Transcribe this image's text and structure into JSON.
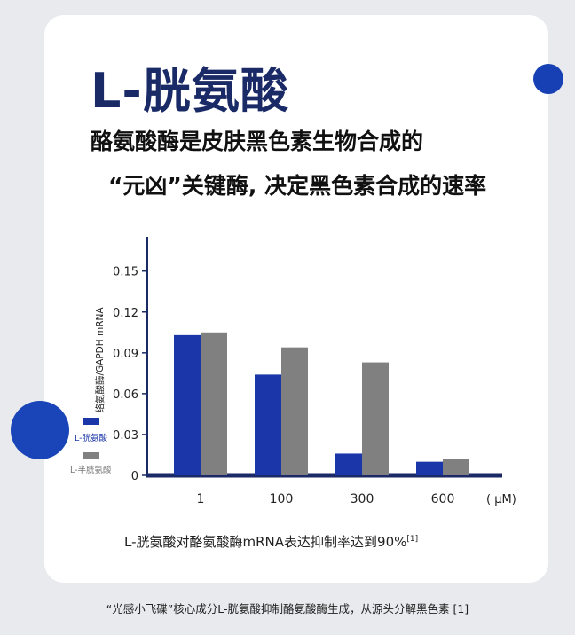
{
  "title": "L-胱氨酸",
  "subtitle_line1": "酪氨酸酶是皮肤黑色素生物合成的",
  "subtitle_line2": "“元凶”关键酶, 决定黑色素合成的速率",
  "caption": "L-胱氨酸对酪氨酸酶mRNA表达抑制率达到90%",
  "caption_ref": "[1]",
  "footer": "“光感小飞碟”核心成分L-胱氨酸抑制酪氨酸酶生成，从源头分解黑色素 [1]",
  "colors": {
    "accent": "#1640b3",
    "series_1": "#1a36a8",
    "series_2": "#808080",
    "axis": "#1b2a66"
  },
  "chart_data": {
    "type": "bar",
    "categories": [
      "1",
      "100",
      "300",
      "600"
    ],
    "x_unit": "( μM)",
    "ylabel": "络氨酸酶/GAPDH mRNA",
    "ylim": [
      0,
      0.17
    ],
    "yticks": [
      "0",
      "0.03",
      "0.06",
      "0.09",
      "0.12",
      "0.15"
    ],
    "grid": false,
    "legend_position": "left",
    "series": [
      {
        "name": "L-胱氨酸",
        "values": [
          0.103,
          0.074,
          0.016,
          0.01
        ]
      },
      {
        "name": "L-半胱氨酸",
        "values": [
          0.105,
          0.094,
          0.083,
          0.012
        ]
      }
    ]
  }
}
